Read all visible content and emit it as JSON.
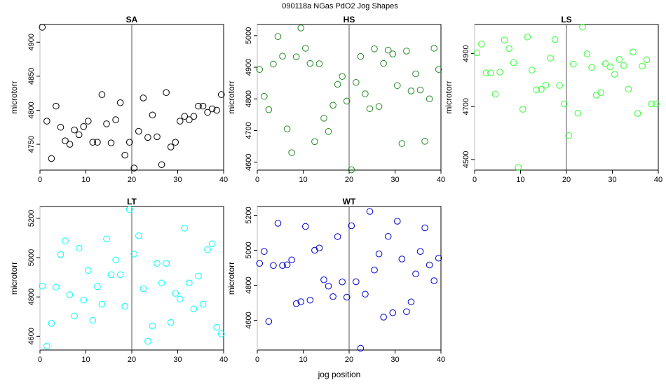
{
  "figure": {
    "title": "090118a   NGas PdO2 Jog Shapes",
    "xlabel": "jog position"
  },
  "chart_data": [
    {
      "type": "scatter",
      "title": "SA",
      "ylabel": "microtorr",
      "color": "#000000",
      "xlim": [
        0,
        40
      ],
      "xticks": [
        0,
        10,
        20,
        30,
        40
      ],
      "ylim": [
        4712,
        4926
      ],
      "yticks": [
        4750,
        4800,
        4850,
        4900
      ],
      "vline": 20,
      "x": [
        0.5,
        1.5,
        2.5,
        3.5,
        4.5,
        5.5,
        6.5,
        7.5,
        8.5,
        9.5,
        10.5,
        11.5,
        12.5,
        13.5,
        14.5,
        15.5,
        16.5,
        17.5,
        18.5,
        19.5,
        20.5,
        21.5,
        22.5,
        23.5,
        24.5,
        25.5,
        26.5,
        27.5,
        28.5,
        29.5,
        30.5,
        31.5,
        32.5,
        33.5,
        34.5,
        35.5,
        36.5,
        37.5,
        38.5,
        39.5
      ],
      "y": [
        4922,
        4784,
        4729,
        4806,
        4775,
        4755,
        4750,
        4771,
        4764,
        4776,
        4784,
        4753,
        4753,
        4823,
        4780,
        4752,
        4786,
        4811,
        4734,
        4753,
        4715,
        4769,
        4818,
        4760,
        4793,
        4761,
        4720,
        4826,
        4746,
        4753,
        4784,
        4791,
        4786,
        4791,
        4806,
        4806,
        4797,
        4802,
        4800,
        4823
      ]
    },
    {
      "type": "scatter",
      "title": "HS",
      "ylabel": "microtorr",
      "color": "#228b22",
      "xlim": [
        0,
        40
      ],
      "xticks": [
        0,
        10,
        20,
        30,
        40
      ],
      "ylim": [
        4575,
        5035
      ],
      "yticks": [
        4600,
        4700,
        4800,
        4900,
        5000
      ],
      "vline": 20,
      "x": [
        0.5,
        1.5,
        2.5,
        3.5,
        4.5,
        5.5,
        6.5,
        7.5,
        8.5,
        9.5,
        10.5,
        11.5,
        12.5,
        13.5,
        14.5,
        15.5,
        16.5,
        17.5,
        18.5,
        19.5,
        20.5,
        21.5,
        22.5,
        23.5,
        24.5,
        25.5,
        26.5,
        27.5,
        28.5,
        29.5,
        30.5,
        31.5,
        32.5,
        33.5,
        34.5,
        35.5,
        36.5,
        37.5,
        38.5,
        39.5
      ],
      "y": [
        4893,
        4808,
        4766,
        4910,
        4997,
        4935,
        4705,
        4630,
        4933,
        5024,
        4960,
        4912,
        4665,
        4911,
        4739,
        4697,
        4780,
        4846,
        4871,
        4793,
        4576,
        4852,
        4934,
        4816,
        4769,
        4958,
        4776,
        4912,
        4954,
        4942,
        4842,
        4659,
        4951,
        4825,
        4879,
        4828,
        4666,
        4800,
        4960,
        4893
      ]
    },
    {
      "type": "scatter",
      "title": "LS",
      "ylabel": "microtorr",
      "color": "#33ff33",
      "xlim": [
        0,
        40
      ],
      "xticks": [
        0,
        10,
        20,
        30,
        40
      ],
      "ylim": [
        4460,
        5010
      ],
      "yticks": [
        4500,
        4700,
        4900
      ],
      "vline": 20,
      "x": [
        0.5,
        1.5,
        2.5,
        3.5,
        4.5,
        5.5,
        6.5,
        7.5,
        8.5,
        9.5,
        10.5,
        11.5,
        12.5,
        13.5,
        14.5,
        15.5,
        16.5,
        17.5,
        18.5,
        19.5,
        20.5,
        21.5,
        22.5,
        23.5,
        24.5,
        25.5,
        26.5,
        27.5,
        28.5,
        29.5,
        30.5,
        31.5,
        32.5,
        33.5,
        34.5,
        35.5,
        36.5,
        37.5,
        38.5,
        39.5
      ],
      "y": [
        4903,
        4936,
        4827,
        4827,
        4747,
        4830,
        4951,
        4919,
        4866,
        4470,
        4690,
        4963,
        4838,
        4763,
        4765,
        4781,
        4883,
        4953,
        4780,
        4710,
        4590,
        4860,
        4675,
        5000,
        4899,
        4848,
        4743,
        4753,
        4862,
        4850,
        4822,
        4878,
        4855,
        4766,
        4906,
        4674,
        4853,
        4877,
        4710,
        4710
      ]
    },
    {
      "type": "scatter",
      "title": "LT",
      "ylabel": "microtorr",
      "color": "#00ffff",
      "xlim": [
        0,
        40
      ],
      "xticks": [
        0,
        10,
        20,
        30,
        40
      ],
      "ylim": [
        4530,
        5260
      ],
      "yticks": [
        4600,
        4800,
        5000,
        5200
      ],
      "vline": 20,
      "x": [
        0.5,
        1.5,
        2.5,
        3.5,
        4.5,
        5.5,
        6.5,
        7.5,
        8.5,
        9.5,
        10.5,
        11.5,
        12.5,
        13.5,
        14.5,
        15.5,
        16.5,
        17.5,
        18.5,
        19.5,
        20.5,
        21.5,
        22.5,
        23.5,
        24.5,
        25.5,
        26.5,
        27.5,
        28.5,
        29.5,
        30.5,
        31.5,
        32.5,
        33.5,
        34.5,
        35.5,
        36.5,
        37.5,
        38.5,
        39.5
      ],
      "y": [
        4855,
        4550,
        4666,
        4850,
        5015,
        5085,
        4811,
        4703,
        5048,
        4784,
        4935,
        4681,
        4853,
        4763,
        5095,
        4913,
        4988,
        4913,
        4752,
        5245,
        5018,
        5111,
        4842,
        4574,
        4652,
        4971,
        4871,
        4971,
        4670,
        4818,
        4789,
        5150,
        4871,
        4739,
        4906,
        4763,
        5040,
        5070,
        4645,
        4612
      ]
    },
    {
      "type": "scatter",
      "title": "WT",
      "ylabel": "microtorr",
      "color": "#0000cc",
      "xlim": [
        0,
        40
      ],
      "xticks": [
        0,
        10,
        20,
        30,
        40
      ],
      "ylim": [
        4430,
        5250
      ],
      "yticks": [
        4600,
        4800,
        5000,
        5200
      ],
      "vline": 20,
      "x": [
        0.5,
        1.5,
        2.5,
        3.5,
        4.5,
        5.5,
        6.5,
        7.5,
        8.5,
        9.5,
        10.5,
        11.5,
        12.5,
        13.5,
        14.5,
        15.5,
        16.5,
        17.5,
        18.5,
        19.5,
        20.5,
        21.5,
        22.5,
        23.5,
        24.5,
        25.5,
        26.5,
        27.5,
        28.5,
        29.5,
        30.5,
        31.5,
        32.5,
        33.5,
        34.5,
        35.5,
        36.5,
        37.5,
        38.5,
        39.5
      ],
      "y": [
        4925,
        4993,
        4593,
        4913,
        5154,
        4913,
        4917,
        4945,
        4695,
        4706,
        5136,
        4715,
        5000,
        5013,
        4831,
        4795,
        4735,
        5078,
        4819,
        4732,
        5140,
        4820,
        4440,
        4749,
        5222,
        4887,
        4979,
        4618,
        5079,
        4643,
        5166,
        4950,
        4649,
        4705,
        4865,
        4993,
        5128,
        4916,
        4826,
        4955
      ]
    }
  ]
}
